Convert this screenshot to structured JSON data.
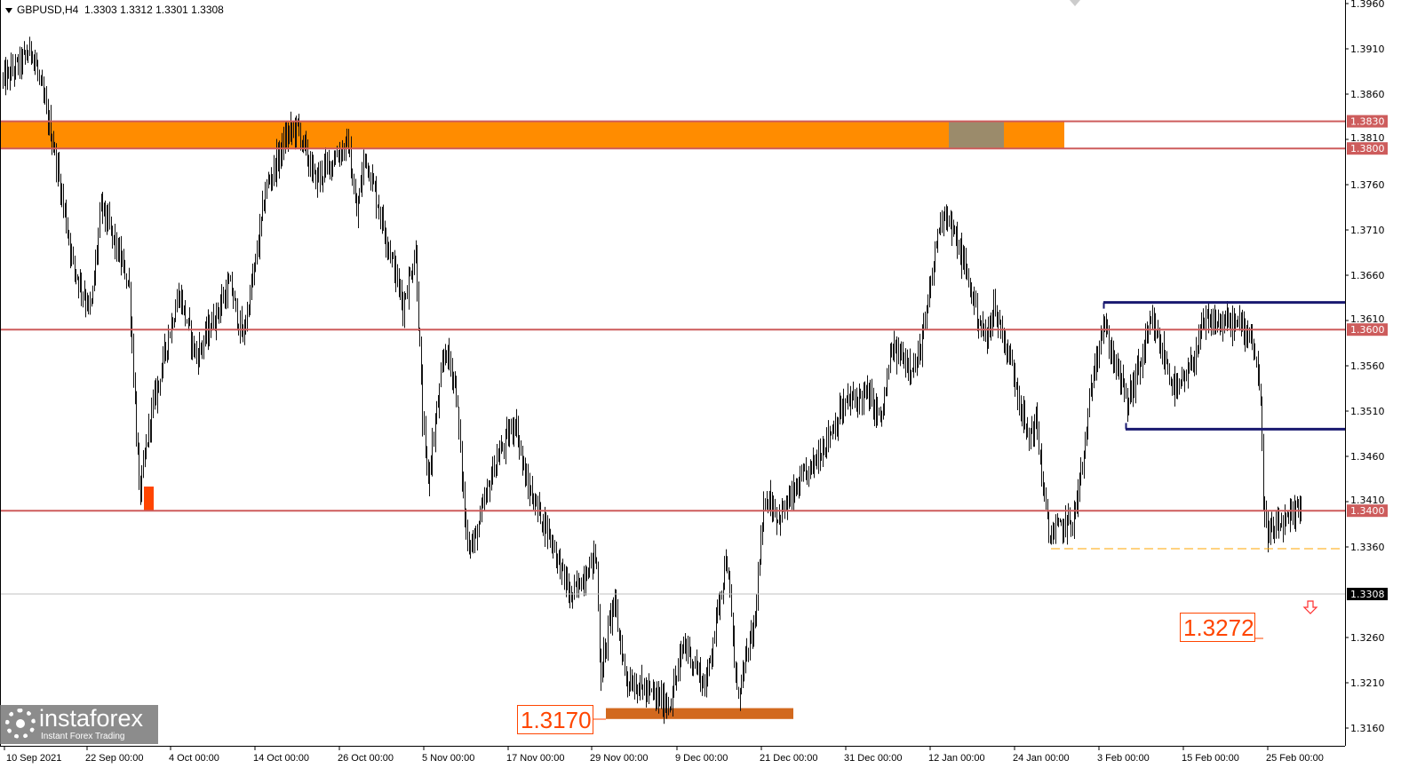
{
  "header": {
    "symbol": "GBPUSD,H4",
    "ohlc": "1.3303 1.3312 1.3301 1.3308"
  },
  "logo": {
    "name": "instaforex",
    "tagline": "Instant Forex Trading"
  },
  "colors": {
    "bars": "#000000",
    "level_line": "#cd5c5c",
    "zone": "#ff8c00",
    "zone_overlap": "#9b8b6b",
    "range_line": "#191970",
    "support_bar": "#d2691e",
    "label_text": "#ff4500",
    "dashed": "#ffa500",
    "current_bg": "#000000"
  },
  "chart_data": {
    "type": "ohlc-bars",
    "symbol": "GBPUSD",
    "timeframe": "H4",
    "ylim": [
      1.314,
      1.396
    ],
    "grid": false,
    "y_ticks": [
      "1.3960",
      "1.3910",
      "1.3860",
      "1.3810",
      "1.3760",
      "1.3710",
      "1.3660",
      "1.3610",
      "1.3560",
      "1.3510",
      "1.3460",
      "1.3410",
      "1.3360",
      "1.3260",
      "1.3210",
      "1.3160"
    ],
    "x_ticks": [
      "10 Sep 2021",
      "22 Sep 00:00",
      "4 Oct 00:00",
      "14 Oct 00:00",
      "26 Oct 00:00",
      "5 Nov 00:00",
      "17 Nov 00:00",
      "29 Nov 00:00",
      "9 Dec 00:00",
      "21 Dec 00:00",
      "31 Dec 00:00",
      "12 Jan 00:00",
      "24 Jan 00:00",
      "3 Feb 00:00",
      "15 Feb 00:00",
      "25 Feb 00:00"
    ],
    "price_path": [
      [
        "2021-09-10T00",
        1.3876
      ],
      [
        "2021-09-14T00",
        1.391
      ],
      [
        "2021-09-17T00",
        1.3807
      ],
      [
        "2021-09-20T00",
        1.367
      ],
      [
        "2021-09-22T12",
        1.362
      ],
      [
        "2021-09-24T00",
        1.3738
      ],
      [
        "2021-09-28T00",
        1.365
      ],
      [
        "2021-09-29T12",
        1.3415
      ],
      [
        "2021-10-01T00",
        1.35
      ],
      [
        "2021-10-05T00",
        1.364
      ],
      [
        "2021-10-07T00",
        1.357
      ],
      [
        "2021-10-11T00",
        1.365
      ],
      [
        "2021-10-12T12",
        1.359
      ],
      [
        "2021-10-15T12",
        1.3755
      ],
      [
        "2021-10-18T12",
        1.3814
      ],
      [
        "2021-10-20T00",
        1.3824
      ],
      [
        "2021-10-22T12",
        1.3765
      ],
      [
        "2021-10-27T00",
        1.3805
      ],
      [
        "2021-10-28T00",
        1.3725
      ],
      [
        "2021-10-29T00",
        1.3794
      ],
      [
        "2021-11-01T00",
        1.3686
      ],
      [
        "2021-11-02T12",
        1.3627
      ],
      [
        "2021-11-04T00",
        1.3686
      ],
      [
        "2021-11-04T20",
        1.35
      ],
      [
        "2021-11-05T12",
        1.343
      ],
      [
        "2021-11-08T00",
        1.358
      ],
      [
        "2021-11-09T12",
        1.354
      ],
      [
        "2021-11-11T00",
        1.3372
      ],
      [
        "2021-11-12T00",
        1.3362
      ],
      [
        "2021-11-15T00",
        1.345
      ],
      [
        "2021-11-18T00",
        1.35
      ],
      [
        "2021-11-19T12",
        1.3431
      ],
      [
        "2021-11-23T00",
        1.3372
      ],
      [
        "2021-11-26T00",
        1.3303
      ],
      [
        "2021-11-29T12",
        1.3352
      ],
      [
        "2021-11-30T00",
        1.3215
      ],
      [
        "2021-12-01T12",
        1.3303
      ],
      [
        "2021-12-03T00",
        1.3215
      ],
      [
        "2021-12-08T00",
        1.3185
      ],
      [
        "2021-12-10T00",
        1.3255
      ],
      [
        "2021-12-13T00",
        1.3205
      ],
      [
        "2021-12-16T00",
        1.3352
      ],
      [
        "2021-12-17T12",
        1.3195
      ],
      [
        "2021-12-20T00",
        1.3274
      ],
      [
        "2021-12-21T12",
        1.3421
      ],
      [
        "2021-12-23T00",
        1.3392
      ],
      [
        "2021-12-27T00",
        1.345
      ],
      [
        "2021-12-31T00",
        1.3519
      ],
      [
        "2022-01-03T00",
        1.3529
      ],
      [
        "2022-01-05T00",
        1.35
      ],
      [
        "2022-01-06T12",
        1.3578
      ],
      [
        "2022-01-10T00",
        1.3558
      ],
      [
        "2022-01-11T12",
        1.3617
      ],
      [
        "2022-01-13T00",
        1.3706
      ],
      [
        "2022-01-14T00",
        1.3735
      ],
      [
        "2022-01-17T00",
        1.3666
      ],
      [
        "2022-01-19T00",
        1.3607
      ],
      [
        "2022-01-20T00",
        1.3588
      ],
      [
        "2022-01-21T00",
        1.3627
      ],
      [
        "2022-01-24T00",
        1.3549
      ],
      [
        "2022-01-25T12",
        1.348
      ],
      [
        "2022-01-26T12",
        1.35
      ],
      [
        "2022-01-28T00",
        1.3372
      ],
      [
        "2022-01-31T00",
        1.3392
      ],
      [
        "2022-02-01T00",
        1.345
      ],
      [
        "2022-02-02T12",
        1.3568
      ],
      [
        "2022-02-03T12",
        1.3607
      ],
      [
        "2022-02-07T00",
        1.3519
      ],
      [
        "2022-02-09T00",
        1.3568
      ],
      [
        "2022-02-10T12",
        1.3607
      ],
      [
        "2022-02-14T00",
        1.3529
      ],
      [
        "2022-02-15T12",
        1.3549
      ],
      [
        "2022-02-17T12",
        1.3607
      ],
      [
        "2022-02-21T00",
        1.3607
      ],
      [
        "2022-02-23T00",
        1.3597
      ],
      [
        "2022-02-24T00",
        1.3539
      ],
      [
        "2022-02-24T12",
        1.3411
      ],
      [
        "2022-02-25T00",
        1.3372
      ],
      [
        "2022-02-28T00",
        1.3392
      ],
      [
        "2022-03-01T00",
        1.3411
      ],
      [
        "2022-03-01T16",
        1.3323
      ],
      [
        "2022-03-02T00",
        1.3308
      ]
    ],
    "current_price": "1.3308",
    "levels": [
      {
        "price": 1.383,
        "label": "1.3830"
      },
      {
        "price": 1.38,
        "label": "1.3800"
      },
      {
        "price": 1.36,
        "label": "1.3600"
      },
      {
        "price": 1.34,
        "label": "1.3400"
      }
    ],
    "resistance_zone": [
      1.38,
      1.383
    ],
    "range_box": {
      "top": 1.363,
      "bottom": 1.349
    },
    "dashed_level": 1.3358,
    "annotations": [
      {
        "text": "1.3170",
        "price": 1.317
      },
      {
        "text": "1.3272",
        "price": 1.3272
      }
    ],
    "signal": "down-arrow"
  }
}
